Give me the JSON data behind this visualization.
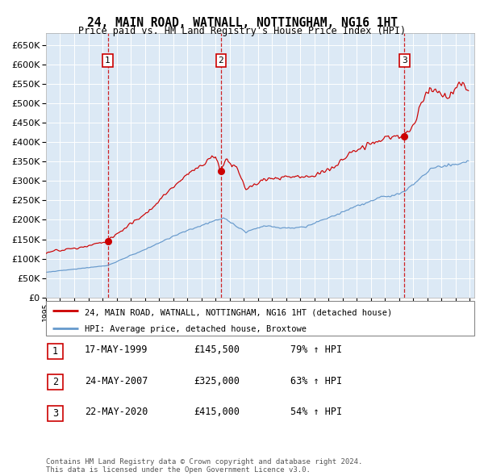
{
  "title": "24, MAIN ROAD, WATNALL, NOTTINGHAM, NG16 1HT",
  "subtitle": "Price paid vs. HM Land Registry's House Price Index (HPI)",
  "red_label": "24, MAIN ROAD, WATNALL, NOTTINGHAM, NG16 1HT (detached house)",
  "blue_label": "HPI: Average price, detached house, Broxtowe",
  "sale_dates": [
    "1999-05-17",
    "2007-05-24",
    "2020-05-22"
  ],
  "sale_prices": [
    145500,
    325000,
    415000
  ],
  "sale_labels": [
    "1",
    "2",
    "3"
  ],
  "sale_annotations": [
    "17-MAY-1999",
    "24-MAY-2007",
    "22-MAY-2020"
  ],
  "sale_amounts": [
    "£145,500",
    "£325,000",
    "£415,000"
  ],
  "sale_hpi_changes": [
    "79% ↑ HPI",
    "63% ↑ HPI",
    "54% ↑ HPI"
  ],
  "ylim": [
    0,
    680000
  ],
  "yticks": [
    0,
    50000,
    100000,
    150000,
    200000,
    250000,
    300000,
    350000,
    400000,
    450000,
    500000,
    550000,
    600000,
    650000
  ],
  "bg_color": "#dce9f5",
  "grid_color": "#ffffff",
  "red_color": "#cc0000",
  "blue_color": "#6699cc",
  "footnote": "Contains HM Land Registry data © Crown copyright and database right 2024.\nThis data is licensed under the Open Government Licence v3.0."
}
